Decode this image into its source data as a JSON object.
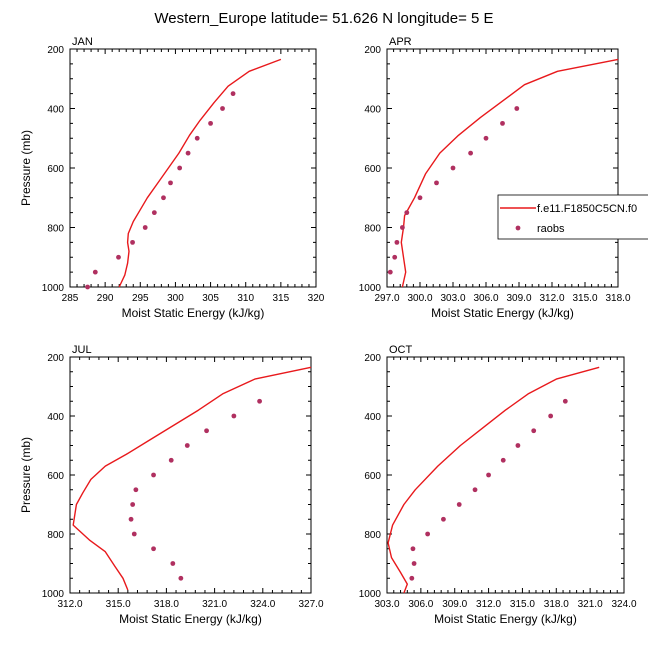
{
  "title": "Western_Europe  latitude= 51.626 N longitude= 5 E",
  "colors": {
    "model": "#e8191c",
    "obs": "#b03060"
  },
  "legend": {
    "position": "right of APR panel",
    "items": [
      {
        "label": "f.e11.F1850C5CN.f0",
        "kind": "line",
        "color": "#e8191c"
      },
      {
        "label": "raobs",
        "kind": "marker",
        "color": "#b03060"
      }
    ]
  },
  "chart_data": [
    {
      "type": "line",
      "panel": "JAN",
      "title": "JAN",
      "xlabel": "Moist Static Energy (kJ/kg)",
      "ylabel": "Pressure (mb)",
      "xlim": [
        285,
        320
      ],
      "ylim": [
        1000,
        200
      ],
      "y_reversed": true,
      "xticks": [
        285,
        290,
        295,
        300,
        305,
        310,
        315,
        320
      ],
      "xtick_labels": [
        "285",
        "290",
        "295",
        "300",
        "305",
        "310",
        "315",
        "320"
      ],
      "yticks": [
        200,
        400,
        600,
        800,
        1000
      ],
      "ytick_labels": [
        "200",
        "400",
        "600",
        "800",
        "1000"
      ],
      "series": [
        {
          "name": "f.e11.F1850C5CN.f0",
          "type": "line",
          "points": [
            [
              315.0,
              235
            ],
            [
              310.5,
              275
            ],
            [
              307.5,
              325
            ],
            [
              305.5,
              380
            ],
            [
              303.5,
              440
            ],
            [
              302.0,
              490
            ],
            [
              300.5,
              550
            ],
            [
              299.0,
              600
            ],
            [
              297.5,
              650
            ],
            [
              296.0,
              700
            ],
            [
              295.0,
              740
            ],
            [
              294.0,
              780
            ],
            [
              293.3,
              820
            ],
            [
              293.2,
              850
            ],
            [
              293.4,
              880
            ],
            [
              293.2,
              920
            ],
            [
              292.8,
              960
            ],
            [
              292.2,
              990
            ],
            [
              292.0,
              1000
            ]
          ]
        },
        {
          "name": "raobs",
          "type": "scatter",
          "points": [
            [
              308.2,
              350
            ],
            [
              306.7,
              400
            ],
            [
              305.0,
              450
            ],
            [
              303.1,
              500
            ],
            [
              301.8,
              550
            ],
            [
              300.6,
              600
            ],
            [
              299.3,
              650
            ],
            [
              298.3,
              700
            ],
            [
              297.0,
              750
            ],
            [
              295.7,
              800
            ],
            [
              293.9,
              850
            ],
            [
              291.9,
              900
            ],
            [
              288.6,
              950
            ],
            [
              287.5,
              1000
            ]
          ]
        }
      ]
    },
    {
      "type": "line",
      "panel": "APR",
      "title": "APR",
      "xlabel": "Moist Static Energy (kJ/kg)",
      "ylabel": "",
      "xlim": [
        297.0,
        318.0
      ],
      "ylim": [
        1000,
        200
      ],
      "y_reversed": true,
      "xticks": [
        297,
        300,
        303,
        306,
        309,
        312,
        315,
        318
      ],
      "xtick_labels": [
        "297.0",
        "300.0",
        "303.0",
        "306.0",
        "309.0",
        "312.0",
        "315.0",
        "318.0"
      ],
      "yticks": [
        200,
        400,
        600,
        800,
        1000
      ],
      "ytick_labels": [
        "200",
        "400",
        "600",
        "800",
        "1000"
      ],
      "series": [
        {
          "name": "f.e11.F1850C5CN.f0",
          "type": "line",
          "points": [
            [
              318.0,
              235
            ],
            [
              312.5,
              275
            ],
            [
              309.5,
              320
            ],
            [
              307.5,
              375
            ],
            [
              305.5,
              430
            ],
            [
              303.5,
              490
            ],
            [
              301.8,
              550
            ],
            [
              300.5,
              620
            ],
            [
              299.5,
              700
            ],
            [
              298.6,
              760
            ],
            [
              298.5,
              800
            ],
            [
              298.3,
              850
            ],
            [
              298.5,
              900
            ],
            [
              298.7,
              950
            ],
            [
              298.4,
              1000
            ]
          ]
        },
        {
          "name": "raobs",
          "type": "scatter",
          "points": [
            [
              308.8,
              400
            ],
            [
              307.5,
              450
            ],
            [
              306.0,
              500
            ],
            [
              304.6,
              550
            ],
            [
              303.0,
              600
            ],
            [
              301.5,
              650
            ],
            [
              300.0,
              700
            ],
            [
              298.8,
              750
            ],
            [
              298.4,
              800
            ],
            [
              297.9,
              850
            ],
            [
              297.7,
              900
            ],
            [
              297.3,
              950
            ]
          ]
        }
      ]
    },
    {
      "type": "line",
      "panel": "JUL",
      "title": "JUL",
      "xlabel": "Moist Static Energy (kJ/kg)",
      "ylabel": "Pressure (mb)",
      "xlim": [
        312.0,
        327.0
      ],
      "ylim": [
        1000,
        200
      ],
      "y_reversed": true,
      "xticks": [
        312,
        315,
        318,
        321,
        324,
        327
      ],
      "xtick_labels": [
        "312.0",
        "315.0",
        "318.0",
        "321.0",
        "324.0",
        "327.0"
      ],
      "yticks": [
        200,
        400,
        600,
        800,
        1000
      ],
      "ytick_labels": [
        "200",
        "400",
        "600",
        "800",
        "1000"
      ],
      "series": [
        {
          "name": "f.e11.F1850C5CN.f0",
          "type": "line",
          "points": [
            [
              327.0,
              235
            ],
            [
              323.5,
              275
            ],
            [
              321.5,
              325
            ],
            [
              320.0,
              380
            ],
            [
              318.5,
              430
            ],
            [
              317.0,
              480
            ],
            [
              315.5,
              530
            ],
            [
              314.2,
              570
            ],
            [
              313.3,
              615
            ],
            [
              312.8,
              660
            ],
            [
              312.4,
              700
            ],
            [
              312.2,
              770
            ],
            [
              313.2,
              820
            ],
            [
              314.2,
              860
            ],
            [
              314.8,
              910
            ],
            [
              315.3,
              950
            ],
            [
              315.6,
              990
            ]
          ]
        },
        {
          "name": "raobs",
          "type": "scatter",
          "points": [
            [
              323.8,
              350
            ],
            [
              322.2,
              400
            ],
            [
              320.5,
              450
            ],
            [
              319.3,
              500
            ],
            [
              318.3,
              550
            ],
            [
              317.2,
              600
            ],
            [
              316.1,
              650
            ],
            [
              315.9,
              700
            ],
            [
              315.8,
              750
            ],
            [
              316.0,
              800
            ],
            [
              317.2,
              850
            ],
            [
              318.4,
              900
            ],
            [
              318.9,
              950
            ]
          ]
        }
      ]
    },
    {
      "type": "line",
      "panel": "OCT",
      "title": "OCT",
      "xlabel": "Moist Static Energy (kJ/kg)",
      "ylabel": "",
      "xlim": [
        303.0,
        324.0
      ],
      "ylim": [
        1000,
        200
      ],
      "y_reversed": true,
      "xticks": [
        303,
        306,
        309,
        312,
        315,
        318,
        321,
        324
      ],
      "xtick_labels": [
        "303.0",
        "306.0",
        "309.0",
        "312.0",
        "315.0",
        "318.0",
        "321.0",
        "324.0"
      ],
      "yticks": [
        200,
        400,
        600,
        800,
        1000
      ],
      "ytick_labels": [
        "200",
        "400",
        "600",
        "800",
        "1000"
      ],
      "series": [
        {
          "name": "f.e11.F1850C5CN.f0",
          "type": "line",
          "points": [
            [
              321.8,
              235
            ],
            [
              318.0,
              275
            ],
            [
              315.5,
              325
            ],
            [
              313.5,
              380
            ],
            [
              311.5,
              440
            ],
            [
              309.5,
              500
            ],
            [
              307.5,
              570
            ],
            [
              305.5,
              650
            ],
            [
              304.5,
              700
            ],
            [
              303.5,
              770
            ],
            [
              303.1,
              830
            ],
            [
              303.4,
              880
            ],
            [
              304.2,
              930
            ],
            [
              304.8,
              970
            ],
            [
              304.5,
              1000
            ]
          ]
        },
        {
          "name": "raobs",
          "type": "scatter",
          "points": [
            [
              318.8,
              350
            ],
            [
              317.5,
              400
            ],
            [
              316.0,
              450
            ],
            [
              314.6,
              500
            ],
            [
              313.3,
              550
            ],
            [
              312.0,
              600
            ],
            [
              310.8,
              650
            ],
            [
              309.4,
              700
            ],
            [
              308.0,
              750
            ],
            [
              306.6,
              800
            ],
            [
              305.3,
              850
            ],
            [
              305.4,
              900
            ],
            [
              305.2,
              950
            ]
          ]
        }
      ]
    }
  ]
}
